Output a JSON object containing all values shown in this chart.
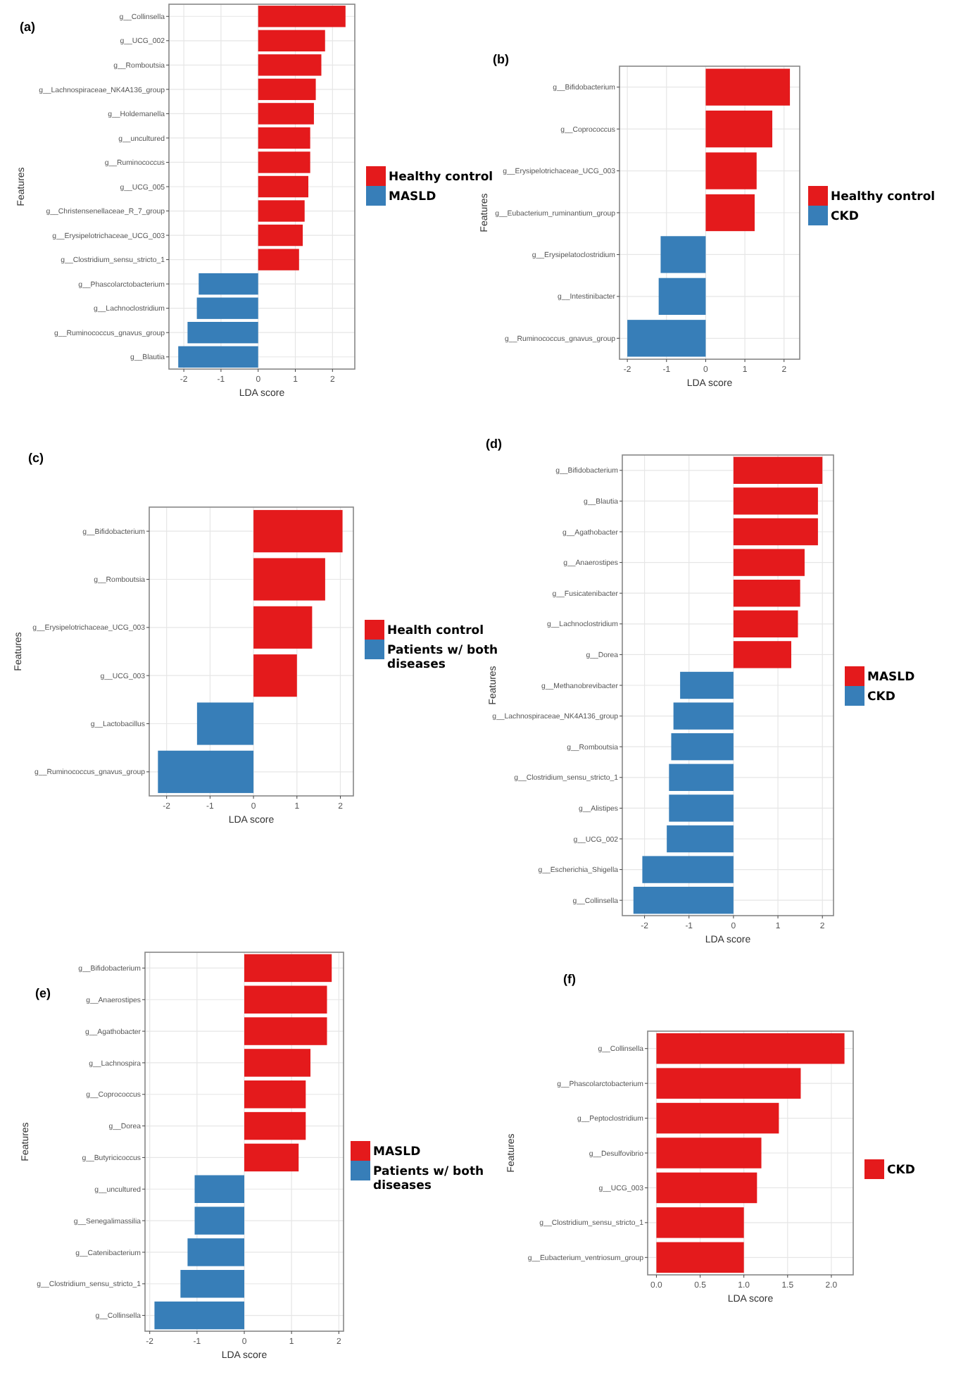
{
  "chart_data": [
    {
      "type": "bar",
      "orientation": "horizontal",
      "title": "(a)",
      "xlabel": "LDA score",
      "ylabel": "Features",
      "grid": true,
      "legend": "right",
      "categories": [
        "g__Collinsella",
        "g__UCG_002",
        "g__Romboutsia",
        "g__Lachnospiraceae_NK4A136_group",
        "g__Holdemanella",
        "g__uncultured",
        "g__Ruminococcus",
        "g__UCG_005",
        "g__Christensenellaceae_R_7_group",
        "g__Erysipelotrichaceae_UCG_003",
        "g__Clostridium_sensu_stricto_1",
        "g__Phascolarctobacterium",
        "g__Lachnoclostridium",
        "g__Ruminococcus_gnavus_group",
        "g__Blautia"
      ],
      "series": [
        {
          "name": "Healthy control",
          "color": "#e41a1c",
          "values": [
            2.35,
            1.8,
            1.7,
            1.55,
            1.5,
            1.4,
            1.4,
            1.35,
            1.25,
            1.2,
            1.1,
            null,
            null,
            null,
            null
          ]
        },
        {
          "name": "MASLD",
          "color": "#377eb8",
          "values": [
            null,
            null,
            null,
            null,
            null,
            null,
            null,
            null,
            null,
            null,
            null,
            -1.6,
            -1.65,
            -1.9,
            -2.15
          ]
        }
      ],
      "xlim": [
        -2.4,
        2.6
      ],
      "xticks": [
        -2,
        -1,
        0,
        1,
        2
      ]
    },
    {
      "type": "bar",
      "orientation": "horizontal",
      "title": "(b)",
      "xlabel": "LDA score",
      "ylabel": "Features",
      "grid": true,
      "legend": "right",
      "categories": [
        "g__Bifidobacterium",
        "g__Coprococcus",
        "g__Erysipelotrichaceae_UCG_003",
        "g__Eubacterium_ruminantium_group",
        "g__Erysipelatoclostridium",
        "g__Intestinibacter",
        "g__Ruminococcus_gnavus_group"
      ],
      "series": [
        {
          "name": "Healthy control",
          "color": "#e41a1c",
          "values": [
            2.15,
            1.7,
            1.3,
            1.25,
            null,
            null,
            null
          ]
        },
        {
          "name": "CKD",
          "color": "#377eb8",
          "values": [
            null,
            null,
            null,
            null,
            -1.15,
            -1.2,
            -2.0
          ]
        }
      ],
      "xlim": [
        -2.2,
        2.4
      ],
      "xticks": [
        -2,
        -1,
        0,
        1,
        2
      ]
    },
    {
      "type": "bar",
      "orientation": "horizontal",
      "title": "(c)",
      "xlabel": "LDA score",
      "ylabel": "Features",
      "grid": true,
      "legend": "right",
      "categories": [
        "g__Bifidobacterium",
        "g__Romboutsia",
        "g__Erysipelotrichaceae_UCG_003",
        "g__UCG_003",
        "g__Lactobacillus",
        "g__Ruminococcus_gnavus_group"
      ],
      "series": [
        {
          "name": "Health control",
          "color": "#e41a1c",
          "values": [
            2.05,
            1.65,
            1.35,
            1.0,
            null,
            null
          ]
        },
        {
          "name": "Patients w/ both diseases",
          "color": "#377eb8",
          "values": [
            null,
            null,
            null,
            null,
            -1.3,
            -2.2
          ]
        }
      ],
      "xlim": [
        -2.4,
        2.3
      ],
      "xticks": [
        -2,
        -1,
        0,
        1,
        2
      ]
    },
    {
      "type": "bar",
      "orientation": "horizontal",
      "title": "(d)",
      "xlabel": "LDA score",
      "ylabel": "Features",
      "grid": true,
      "legend": "right",
      "categories": [
        "g__Bifidobacterium",
        "g__Blautia",
        "g__Agathobacter",
        "g__Anaerostipes",
        "g__Fusicatenibacter",
        "g__Lachnoclostridium",
        "g__Dorea",
        "g__Methanobrevibacter",
        "g__Lachnospiraceae_NK4A136_group",
        "g__Romboutsia",
        "g__Clostridium_sensu_stricto_1",
        "g__Alistipes",
        "g__UCG_002",
        "g__Escherichia_Shigella",
        "g__Collinsella"
      ],
      "series": [
        {
          "name": "MASLD",
          "color": "#e41a1c",
          "values": [
            2.0,
            1.9,
            1.9,
            1.6,
            1.5,
            1.45,
            1.3,
            null,
            null,
            null,
            null,
            null,
            null,
            null,
            null
          ]
        },
        {
          "name": "CKD",
          "color": "#377eb8",
          "values": [
            null,
            null,
            null,
            null,
            null,
            null,
            null,
            -1.2,
            -1.35,
            -1.4,
            -1.45,
            -1.45,
            -1.5,
            -2.05,
            -2.25
          ]
        }
      ],
      "xlim": [
        -2.5,
        2.25
      ],
      "xticks": [
        -2,
        -1,
        0,
        1,
        2
      ]
    },
    {
      "type": "bar",
      "orientation": "horizontal",
      "title": "(e)",
      "xlabel": "LDA score",
      "ylabel": "Features",
      "grid": true,
      "legend": "right",
      "categories": [
        "g__Bifidobacterium",
        "g__Anaerostipes",
        "g__Agathobacter",
        "g__Lachnospira",
        "g__Coprococcus",
        "g__Dorea",
        "g__Butyricicoccus",
        "g__uncultured",
        "g__Senegalimassilia",
        "g__Catenibacterium",
        "g__Clostridium_sensu_stricto_1",
        "g__Collinsella"
      ],
      "series": [
        {
          "name": "MASLD",
          "color": "#e41a1c",
          "values": [
            1.85,
            1.75,
            1.75,
            1.4,
            1.3,
            1.3,
            1.15,
            null,
            null,
            null,
            null,
            null
          ]
        },
        {
          "name": "Patients w/ both diseases",
          "color": "#377eb8",
          "values": [
            null,
            null,
            null,
            null,
            null,
            null,
            null,
            -1.05,
            -1.05,
            -1.2,
            -1.35,
            -1.9
          ]
        }
      ],
      "xlim": [
        -2.1,
        2.1
      ],
      "xticks": [
        -2,
        -1,
        0,
        1,
        2
      ]
    },
    {
      "type": "bar",
      "orientation": "horizontal",
      "title": "(f)",
      "xlabel": "LDA score",
      "ylabel": "Features",
      "grid": true,
      "legend": "right",
      "categories": [
        "g__Collinsella",
        "g__Phascolarctobacterium",
        "g__Peptoclostridium",
        "g__Desulfovibrio",
        "g__UCG_003",
        "g__Clostridium_sensu_stricto_1",
        "g__Eubacterium_ventriosum_group"
      ],
      "series": [
        {
          "name": "CKD",
          "color": "#e41a1c",
          "values": [
            2.15,
            1.65,
            1.4,
            1.2,
            1.15,
            1.0,
            1.0
          ]
        }
      ],
      "xlim": [
        -0.1,
        2.25
      ],
      "xticks": [
        {
          "value": 0,
          "label": "0.0"
        },
        {
          "value": 0.5,
          "label": "0.5"
        },
        {
          "value": 1,
          "label": "1.0"
        },
        {
          "value": 1.5,
          "label": "1.5"
        },
        {
          "value": 2,
          "label": "2.0"
        }
      ]
    }
  ]
}
